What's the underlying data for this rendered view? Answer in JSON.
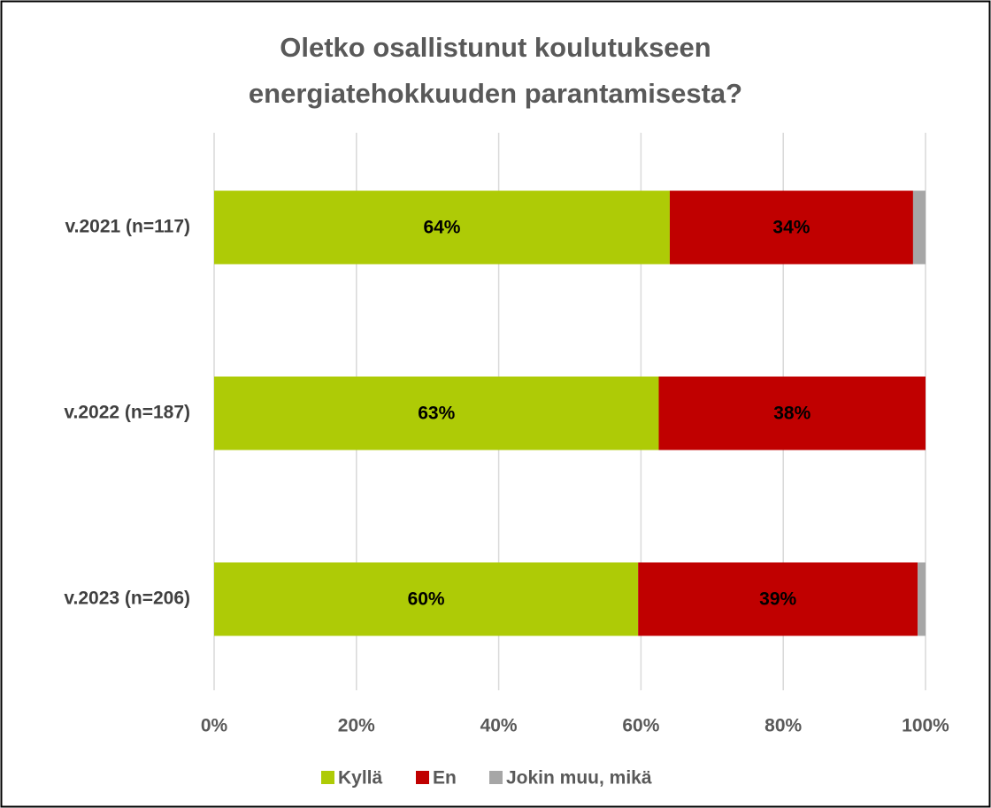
{
  "chart_data": {
    "type": "stacked-bar-horizontal",
    "title": "Oletko osallistunut koulutukseen energiatehokkuuden parantamisesta?",
    "categories": [
      "v.2021 (n=117)",
      "v.2022 (n=187)",
      "v.2023 (n=206)"
    ],
    "series": [
      {
        "name": "Kyllä",
        "color": "#aecb06",
        "values": [
          64.05,
          62.5,
          59.6
        ],
        "value_labels": [
          "64%",
          "63%",
          "60%"
        ]
      },
      {
        "name": "En",
        "color": "#c00000",
        "values": [
          34.2,
          37.5,
          39.3
        ],
        "value_labels": [
          "34%",
          "38%",
          "39%"
        ]
      },
      {
        "name": "Jokin muu, mikä",
        "color": "#a6a6a6",
        "values": [
          1.75,
          0,
          1.1
        ]
      }
    ],
    "xlim": [
      0,
      100
    ],
    "xticks": [
      {
        "value": 0,
        "label": "0%"
      },
      {
        "value": 20,
        "label": "20%"
      },
      {
        "value": 40,
        "label": "40%"
      },
      {
        "value": 60,
        "label": "60%"
      },
      {
        "value": 80,
        "label": "80%"
      },
      {
        "value": 100,
        "label": "100%"
      }
    ],
    "grid": true,
    "legend": "bottom"
  }
}
